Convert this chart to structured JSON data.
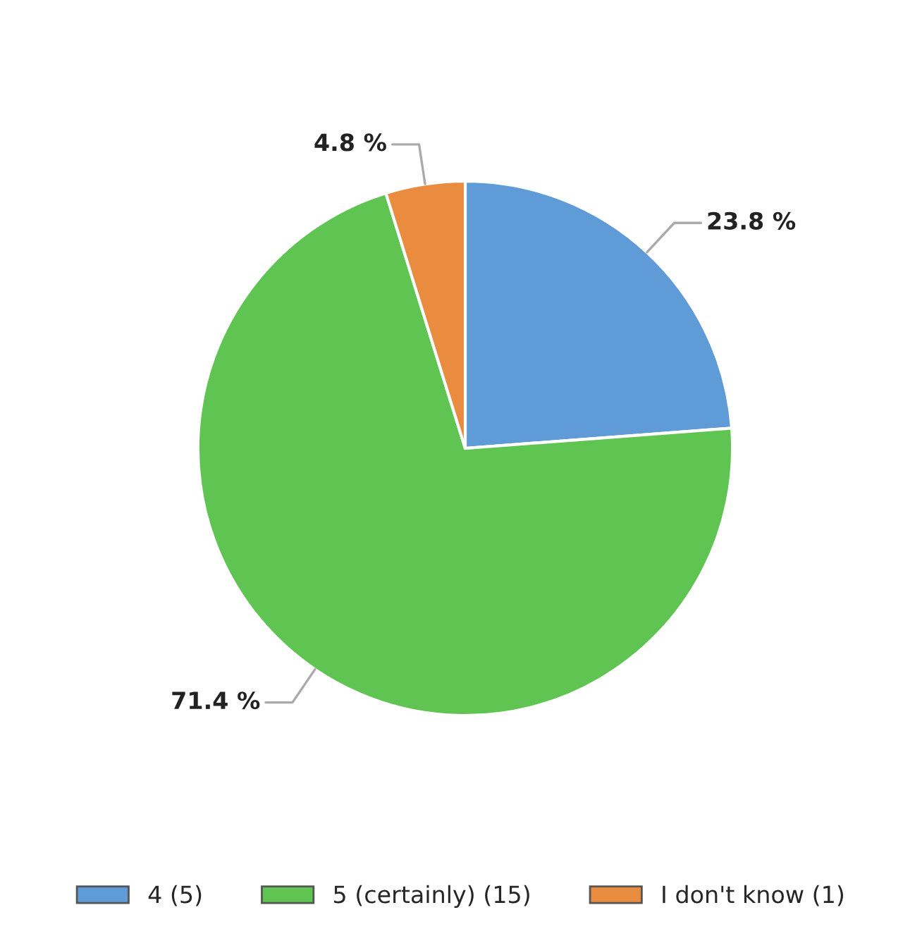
{
  "chart_data": {
    "type": "pie",
    "categories": [
      "4 (5)",
      "5 (certainly) (15)",
      "I don't know (1)"
    ],
    "values": [
      23.8,
      71.4,
      4.8
    ],
    "value_labels": [
      "23.8 %",
      "71.4 %",
      "4.8 %"
    ],
    "colors": [
      "#5f9bd6",
      "#5fc452",
      "#e98c40"
    ],
    "legend": "bottom"
  }
}
